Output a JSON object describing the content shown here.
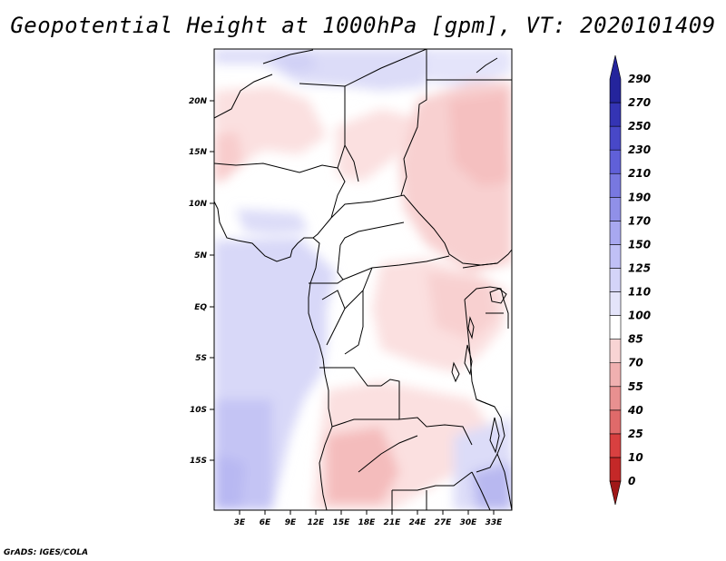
{
  "title": "Geopotential Height at 1000hPa [gpm], VT: 2020101409",
  "credit": "GrADS: IGES/COLA",
  "map": {
    "lat_ticks": [
      "20N",
      "15N",
      "10N",
      "5N",
      "EQ",
      "5S",
      "10S",
      "15S"
    ],
    "lon_ticks": [
      "3E",
      "6E",
      "9E",
      "12E",
      "15E",
      "18E",
      "21E",
      "24E",
      "27E",
      "30E",
      "33E"
    ]
  },
  "colorbar": {
    "levels": [
      "0",
      "10",
      "25",
      "40",
      "55",
      "70",
      "85",
      "100",
      "110",
      "125",
      "150",
      "170",
      "190",
      "210",
      "230",
      "250",
      "270",
      "290"
    ],
    "colors": [
      "#a01818",
      "#c42828",
      "#d84040",
      "#e06a6a",
      "#e89090",
      "#f0b0b0",
      "#f8d4d4",
      "#ffffff",
      "#e4e4fa",
      "#d4d4f8",
      "#c0c0f6",
      "#a8a8f0",
      "#9090e8",
      "#7878e0",
      "#6060d8",
      "#4848c8",
      "#3434b4",
      "#24249c"
    ]
  }
}
